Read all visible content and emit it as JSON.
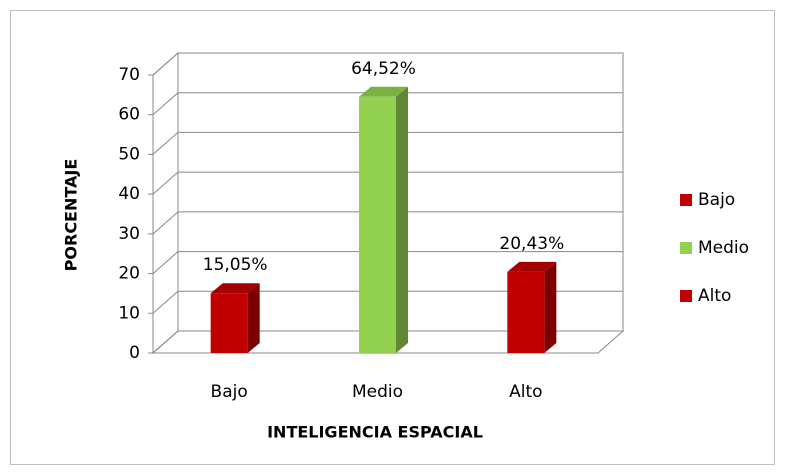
{
  "chart_data": {
    "type": "bar3d",
    "x_label": "INTELIGENCIA ESPACIAL",
    "y_label": "PORCENTAJE",
    "categories": [
      "Bajo",
      "Medio",
      "Alto"
    ],
    "values": [
      15.05,
      64.52,
      20.43
    ],
    "value_labels": [
      "15,05%",
      "64,52%",
      "20,43%"
    ],
    "colors": [
      "#c00000",
      "#92d050",
      "#c00000"
    ],
    "ylim": [
      0,
      70
    ],
    "yticks": [
      0,
      10,
      20,
      30,
      40,
      50,
      60,
      70
    ],
    "grid": true,
    "legend": "right"
  }
}
